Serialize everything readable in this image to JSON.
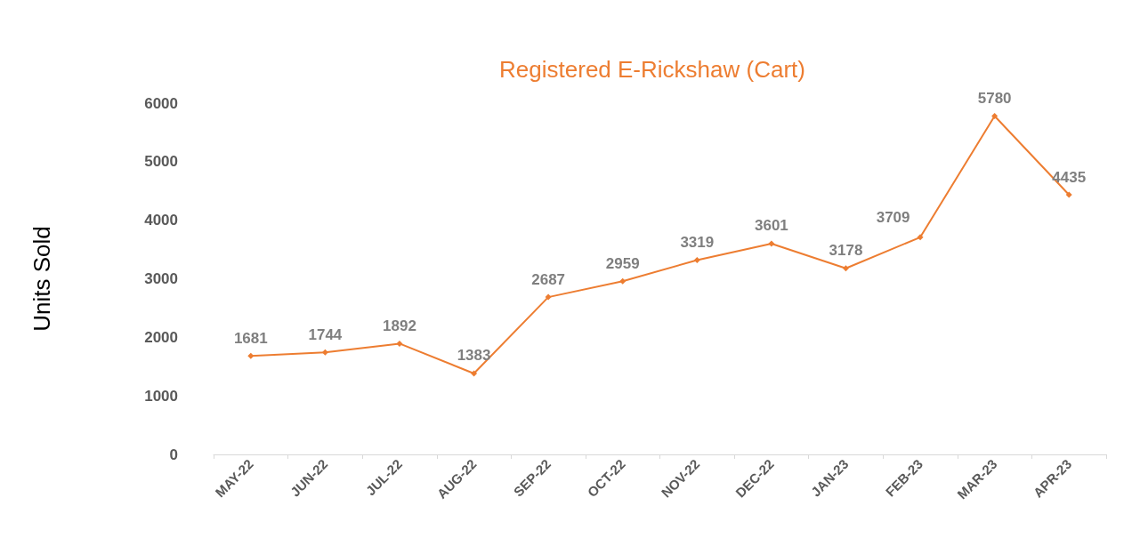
{
  "chart_data": {
    "type": "line",
    "title": "Registered E-Rickshaw (Cart)",
    "ylabel": "Units Sold",
    "categories": [
      "MAY-22",
      "JUN-22",
      "JUL-22",
      "AUG-22",
      "SEP-22",
      "OCT-22",
      "NOV-22",
      "DEC-22",
      "JAN-23",
      "FEB-23",
      "MAR-23",
      "APR-23"
    ],
    "series": [
      {
        "color": "#ed7d31",
        "values": [
          1681,
          1744,
          1892,
          1383,
          2687,
          2959,
          3319,
          3601,
          3178,
          3709,
          5780,
          4435
        ]
      }
    ],
    "ylim": [
      0,
      6000
    ],
    "yticks": [
      0,
      1000,
      2000,
      3000,
      4000,
      5000,
      6000
    ],
    "grid": false,
    "marker": "diamond",
    "data_labels": true
  }
}
